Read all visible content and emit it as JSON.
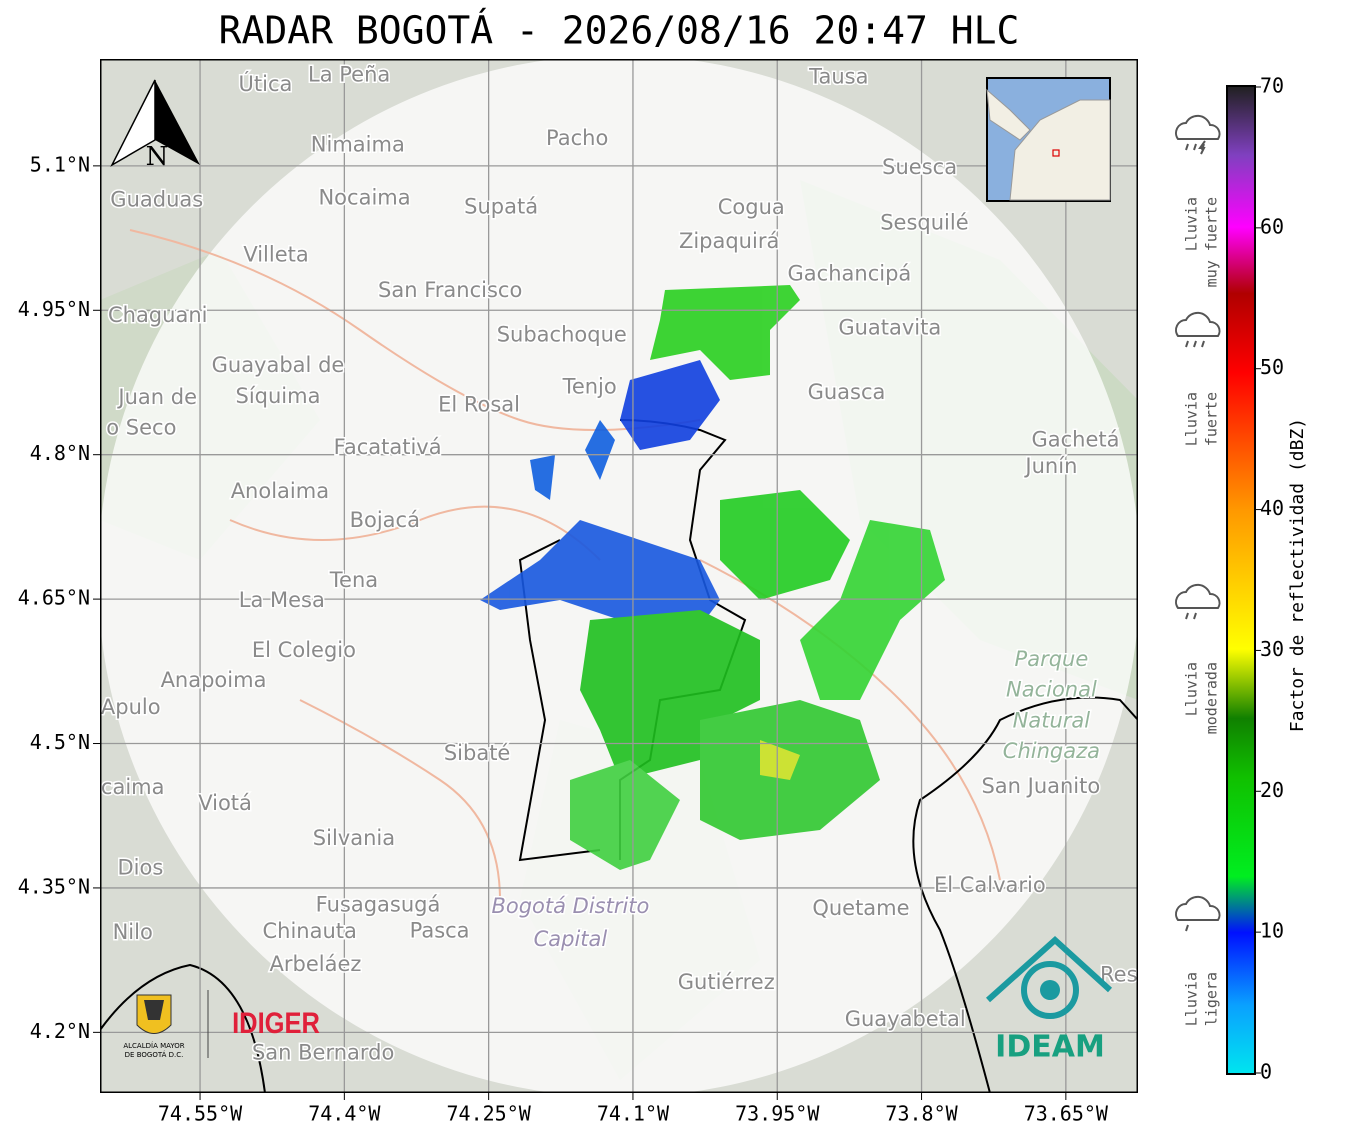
{
  "map": {
    "title": "RADAR BOGOTÁ - 2026/08/16 20:47 HLC",
    "xlim": [
      -74.654,
      -73.575
    ],
    "ylim": [
      4.137,
      5.211
    ],
    "xticks": [
      {
        "value": -74.55,
        "label": "74.55°W"
      },
      {
        "value": -74.4,
        "label": "74.4°W"
      },
      {
        "value": -74.25,
        "label": "74.25°W"
      },
      {
        "value": -74.1,
        "label": "74.1°W"
      },
      {
        "value": -73.95,
        "label": "73.95°W"
      },
      {
        "value": -73.8,
        "label": "73.8°W"
      },
      {
        "value": -73.65,
        "label": "73.65°W"
      }
    ],
    "yticks": [
      {
        "value": 5.1,
        "label": "5.1°N"
      },
      {
        "value": 4.95,
        "label": "4.95°N"
      },
      {
        "value": 4.8,
        "label": "4.8°N"
      },
      {
        "value": 4.65,
        "label": "4.65°N"
      },
      {
        "value": 4.5,
        "label": "4.5°N"
      },
      {
        "value": 4.35,
        "label": "4.35°N"
      },
      {
        "value": 4.2,
        "label": "4.2°N"
      }
    ],
    "grid": true,
    "north_label": "N",
    "places": [
      {
        "name": "Útica",
        "lon": -74.482,
        "lat": 5.184
      },
      {
        "name": "La Peña",
        "lon": -74.395,
        "lat": 5.194
      },
      {
        "name": "Tausa",
        "lon": -73.886,
        "lat": 5.192
      },
      {
        "name": "Pacho",
        "lon": -74.158,
        "lat": 5.128
      },
      {
        "name": "Nimaima",
        "lon": -74.386,
        "lat": 5.121
      },
      {
        "name": "Guaduas",
        "lon": -74.595,
        "lat": 5.064
      },
      {
        "name": "Nocaima",
        "lon": -74.379,
        "lat": 5.066
      },
      {
        "name": "Supatá",
        "lon": -74.237,
        "lat": 5.057
      },
      {
        "name": "Cogua",
        "lon": -73.977,
        "lat": 5.056
      },
      {
        "name": "Suesca",
        "lon": -73.802,
        "lat": 5.098
      },
      {
        "name": "Sesquilé",
        "lon": -73.797,
        "lat": 5.04
      },
      {
        "name": "Zipaquirá",
        "lon": -74.0,
        "lat": 5.021
      },
      {
        "name": "Villeta",
        "lon": -74.471,
        "lat": 5.007
      },
      {
        "name": "Gachancipá",
        "lon": -73.875,
        "lat": 4.987
      },
      {
        "name": "San Francisco",
        "lon": -74.29,
        "lat": 4.97
      },
      {
        "name": "Chaguani",
        "lon": -74.594,
        "lat": 4.944
      },
      {
        "name": "Guatavita",
        "lon": -73.833,
        "lat": 4.931
      },
      {
        "name": "Subachoque",
        "lon": -74.174,
        "lat": 4.924
      },
      {
        "name": "Guayabal de",
        "lon": -74.469,
        "lat": 4.892
      },
      {
        "name": "Síquima",
        "lon": -74.469,
        "lat": 4.86
      },
      {
        "name": "Tenjo",
        "lon": -74.145,
        "lat": 4.87
      },
      {
        "name": "Guasca",
        "lon": -73.878,
        "lat": 4.864
      },
      {
        "name": "Juan de",
        "lon": -74.594,
        "lat": 4.859
      },
      {
        "name": "o Seco",
        "lon": -74.611,
        "lat": 4.827
      },
      {
        "name": "El Rosal",
        "lon": -74.26,
        "lat": 4.851
      },
      {
        "name": "Facatativá",
        "lon": -74.355,
        "lat": 4.807
      },
      {
        "name": "Gachetá",
        "lon": -73.64,
        "lat": 4.815
      },
      {
        "name": "Junín",
        "lon": -73.665,
        "lat": 4.787
      },
      {
        "name": "Anolaima",
        "lon": -74.467,
        "lat": 4.761
      },
      {
        "name": "Bojacá",
        "lon": -74.358,
        "lat": 4.731
      },
      {
        "name": "Tena",
        "lon": -74.39,
        "lat": 4.669
      },
      {
        "name": "La Mesa",
        "lon": -74.465,
        "lat": 4.648
      },
      {
        "name": "El Colegio",
        "lon": -74.442,
        "lat": 4.596
      },
      {
        "name": "Anapoima",
        "lon": -74.536,
        "lat": 4.565
      },
      {
        "name": "Apulo",
        "lon": -74.622,
        "lat": 4.537
      },
      {
        "name": "Sibaté",
        "lon": -74.262,
        "lat": 4.489
      },
      {
        "name": "San Juanito",
        "lon": -73.676,
        "lat": 4.455
      },
      {
        "name": "caima",
        "lon": -74.62,
        "lat": 4.454
      },
      {
        "name": "Viotá",
        "lon": -74.524,
        "lat": 4.437
      },
      {
        "name": "Silvania",
        "lon": -74.39,
        "lat": 4.401
      },
      {
        "name": "Dios",
        "lon": -74.612,
        "lat": 4.37
      },
      {
        "name": "El Calvario",
        "lon": -73.729,
        "lat": 4.352
      },
      {
        "name": "Fusagasugá",
        "lon": -74.365,
        "lat": 4.332
      },
      {
        "name": "Quetame",
        "lon": -73.863,
        "lat": 4.328
      },
      {
        "name": "Nilo",
        "lon": -74.62,
        "lat": 4.303
      },
      {
        "name": "Chinauta",
        "lon": -74.436,
        "lat": 4.304
      },
      {
        "name": "Pasca",
        "lon": -74.301,
        "lat": 4.305
      },
      {
        "name": "Arbeláez",
        "lon": -74.43,
        "lat": 4.27
      },
      {
        "name": "Gutiérrez",
        "lon": -74.003,
        "lat": 4.251
      },
      {
        "name": "Res",
        "lon": -73.595,
        "lat": 4.259
      },
      {
        "name": "Guayabetal",
        "lon": -73.817,
        "lat": 4.213
      },
      {
        "name": "San Bernardo",
        "lon": -74.422,
        "lat": 4.178
      }
    ],
    "park_labels": [
      {
        "name": "Parque",
        "lon": -73.665,
        "lat": 4.587
      },
      {
        "name": "Nacional",
        "lon": -73.665,
        "lat": 4.555
      },
      {
        "name": "Natural",
        "lon": -73.665,
        "lat": 4.523
      },
      {
        "name": "Chingaza",
        "lon": -73.665,
        "lat": 4.491
      },
      {
        "name": "Bogotá Distrito",
        "lon": -74.165,
        "lat": 4.33
      },
      {
        "name": "Capital",
        "lon": -74.165,
        "lat": 4.296
      }
    ],
    "logos": {
      "alcaldia": "ALCALDÍA MAYOR",
      "alcaldia_2": "DE BOGOTÁ D.C.",
      "idiger": "IDIGER",
      "ideam": "IDEAM"
    }
  },
  "colorbar": {
    "label": "Factor de reflectividad (dBZ)",
    "lim": [
      0,
      70
    ],
    "ticks": [
      0,
      10,
      20,
      30,
      40,
      50,
      60,
      70
    ]
  },
  "rain_legend": [
    {
      "lines": [
        "Lluvia",
        "ligera"
      ]
    },
    {
      "lines": [
        "Lluvia",
        "moderada"
      ]
    },
    {
      "lines": [
        "Lluvia",
        "fuerte"
      ]
    },
    {
      "lines": [
        "Lluvia",
        "muy fuerte"
      ]
    }
  ]
}
